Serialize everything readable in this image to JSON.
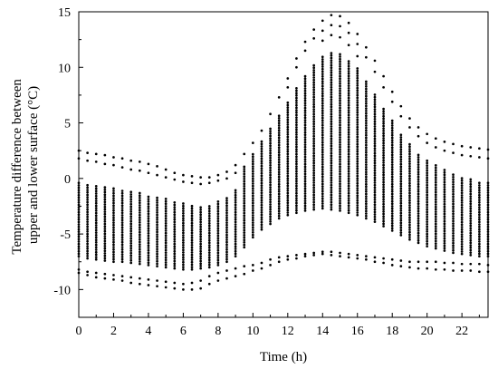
{
  "chart_data": {
    "type": "scatter",
    "title": "",
    "xlabel": "Time (h)",
    "ylabel_lines": [
      "Temperature difference between",
      "upper and lower surface (°C)"
    ],
    "xlim": [
      0,
      23.5
    ],
    "ylim": [
      -12.5,
      15
    ],
    "x_ticks": [
      0,
      2,
      4,
      6,
      8,
      10,
      12,
      14,
      16,
      18,
      20,
      22
    ],
    "x_tick_labels": [
      "0",
      "2",
      "4",
      "6",
      "8",
      "10",
      "12",
      "14",
      "16",
      "18",
      "20",
      "22"
    ],
    "y_ticks": [
      -10,
      -5,
      0,
      5,
      10,
      15
    ],
    "y_tick_labels": [
      "-10",
      "-5",
      "0",
      "5",
      "10",
      "15"
    ],
    "grid": false,
    "marker_color": "#000000",
    "x_step_h": 0.5,
    "columns": [
      {
        "x": 0.0,
        "sparse": [
          2.5,
          1.8,
          -8.2,
          -8.5
        ],
        "dense_range": [
          -7.0,
          -0.3
        ]
      },
      {
        "x": 0.5,
        "sparse": [
          2.3,
          1.6,
          -8.4,
          -8.7
        ],
        "dense_range": [
          -7.2,
          -0.5
        ]
      },
      {
        "x": 1.0,
        "sparse": [
          2.2,
          1.5,
          -8.5,
          -8.9
        ],
        "dense_range": [
          -7.3,
          -0.6
        ]
      },
      {
        "x": 1.5,
        "sparse": [
          2.1,
          1.3,
          -8.6,
          -9.0
        ],
        "dense_range": [
          -7.4,
          -0.8
        ]
      },
      {
        "x": 2.0,
        "sparse": [
          1.9,
          1.2,
          -8.7,
          -9.1
        ],
        "dense_range": [
          -7.5,
          -0.9
        ]
      },
      {
        "x": 2.5,
        "sparse": [
          1.8,
          1.0,
          -8.8,
          -9.2
        ],
        "dense_range": [
          -7.5,
          -1.0
        ]
      },
      {
        "x": 3.0,
        "sparse": [
          1.6,
          0.8,
          -8.9,
          -9.4
        ],
        "dense_range": [
          -7.6,
          -1.2
        ]
      },
      {
        "x": 3.5,
        "sparse": [
          1.5,
          0.7,
          -9.0,
          -9.5
        ],
        "dense_range": [
          -7.7,
          -1.3
        ]
      },
      {
        "x": 4.0,
        "sparse": [
          1.3,
          0.5,
          -9.1,
          -9.6
        ],
        "dense_range": [
          -7.8,
          -1.5
        ]
      },
      {
        "x": 4.5,
        "sparse": [
          1.1,
          0.3,
          -9.2,
          -9.7
        ],
        "dense_range": [
          -7.9,
          -1.6
        ]
      },
      {
        "x": 5.0,
        "sparse": [
          0.8,
          0.1,
          -9.3,
          -9.8
        ],
        "dense_range": [
          -8.0,
          -1.8
        ]
      },
      {
        "x": 5.5,
        "sparse": [
          0.5,
          -0.1,
          -9.4,
          -9.9
        ],
        "dense_range": [
          -8.1,
          -2.0
        ]
      },
      {
        "x": 6.0,
        "sparse": [
          0.3,
          -0.3,
          -9.5,
          -10.0
        ],
        "dense_range": [
          -8.2,
          -2.2
        ]
      },
      {
        "x": 6.5,
        "sparse": [
          0.2,
          -0.4,
          -9.4,
          -10.0
        ],
        "dense_range": [
          -8.2,
          -2.3
        ]
      },
      {
        "x": 7.0,
        "sparse": [
          0.1,
          -0.5,
          -9.2,
          -9.9
        ],
        "dense_range": [
          -8.1,
          -2.4
        ]
      },
      {
        "x": 7.5,
        "sparse": [
          0.1,
          -0.4,
          -8.8,
          -9.5
        ],
        "dense_range": [
          -8.0,
          -2.3
        ]
      },
      {
        "x": 8.0,
        "sparse": [
          0.3,
          -0.2,
          -8.5,
          -9.2
        ],
        "dense_range": [
          -7.8,
          -2.0
        ]
      },
      {
        "x": 8.5,
        "sparse": [
          0.6,
          0.0,
          -8.3,
          -9.0
        ],
        "dense_range": [
          -7.5,
          -1.7
        ]
      },
      {
        "x": 9.0,
        "sparse": [
          1.2,
          0.5,
          -8.1,
          -8.8
        ],
        "dense_range": [
          -7.0,
          -1.0
        ]
      },
      {
        "x": 9.5,
        "sparse": [
          2.2,
          -7.9,
          -8.6
        ],
        "dense_range": [
          -6.2,
          1.2
        ]
      },
      {
        "x": 10.0,
        "sparse": [
          3.2,
          -7.8,
          -8.3
        ],
        "dense_range": [
          -5.3,
          2.3
        ]
      },
      {
        "x": 10.5,
        "sparse": [
          4.3,
          -7.6,
          -8.1
        ],
        "dense_range": [
          -4.6,
          3.4
        ]
      },
      {
        "x": 11.0,
        "sparse": [
          5.8,
          -7.3,
          -7.8
        ],
        "dense_range": [
          -4.1,
          4.6
        ]
      },
      {
        "x": 11.5,
        "sparse": [
          7.3,
          -7.1,
          -7.5
        ],
        "dense_range": [
          -3.6,
          5.8
        ]
      },
      {
        "x": 12.0,
        "sparse": [
          9.0,
          8.2,
          -7.0,
          -7.3
        ],
        "dense_range": [
          -3.3,
          7.0
        ]
      },
      {
        "x": 12.5,
        "sparse": [
          10.8,
          10.0,
          -6.9,
          -7.2
        ],
        "dense_range": [
          -3.1,
          8.2
        ]
      },
      {
        "x": 13.0,
        "sparse": [
          12.3,
          11.5,
          -6.8,
          -7.0
        ],
        "dense_range": [
          -2.9,
          9.4
        ]
      },
      {
        "x": 13.5,
        "sparse": [
          13.4,
          12.6,
          -6.7,
          -6.9
        ],
        "dense_range": [
          -2.8,
          10.3
        ]
      },
      {
        "x": 14.0,
        "sparse": [
          14.2,
          13.3,
          12.4,
          -6.6,
          -6.8
        ],
        "dense_range": [
          -2.7,
          11.0
        ]
      },
      {
        "x": 14.5,
        "sparse": [
          14.7,
          13.8,
          12.9,
          -6.6,
          -6.9
        ],
        "dense_range": [
          -2.8,
          11.3
        ]
      },
      {
        "x": 15.0,
        "sparse": [
          14.6,
          13.7,
          12.7,
          -6.7,
          -7.0
        ],
        "dense_range": [
          -2.9,
          11.2
        ]
      },
      {
        "x": 15.5,
        "sparse": [
          14.0,
          13.1,
          12.0,
          -6.8,
          -7.1
        ],
        "dense_range": [
          -3.1,
          10.7
        ]
      },
      {
        "x": 16.0,
        "sparse": [
          13.0,
          12.1,
          11.0,
          -6.9,
          -7.2
        ],
        "dense_range": [
          -3.3,
          9.9
        ]
      },
      {
        "x": 16.5,
        "sparse": [
          11.8,
          10.9,
          -7.0,
          -7.3
        ],
        "dense_range": [
          -3.6,
          8.9
        ]
      },
      {
        "x": 17.0,
        "sparse": [
          10.6,
          9.6,
          -7.1,
          -7.5
        ],
        "dense_range": [
          -3.9,
          7.7
        ]
      },
      {
        "x": 17.5,
        "sparse": [
          9.2,
          8.2,
          -7.2,
          -7.6
        ],
        "dense_range": [
          -4.3,
          6.4
        ]
      },
      {
        "x": 18.0,
        "sparse": [
          7.8,
          6.9,
          -7.3,
          -7.8
        ],
        "dense_range": [
          -4.7,
          5.2
        ]
      },
      {
        "x": 18.5,
        "sparse": [
          6.5,
          5.6,
          -7.4,
          -7.9
        ],
        "dense_range": [
          -5.1,
          4.1
        ]
      },
      {
        "x": 19.0,
        "sparse": [
          5.4,
          4.6,
          -7.5,
          -8.0
        ],
        "dense_range": [
          -5.5,
          3.1
        ]
      },
      {
        "x": 19.5,
        "sparse": [
          4.6,
          3.8,
          -7.5,
          -8.1
        ],
        "dense_range": [
          -5.8,
          2.3
        ]
      },
      {
        "x": 20.0,
        "sparse": [
          4.0,
          3.2,
          -7.5,
          -8.1
        ],
        "dense_range": [
          -6.1,
          1.7
        ]
      },
      {
        "x": 20.5,
        "sparse": [
          3.6,
          2.8,
          -7.5,
          -8.2
        ],
        "dense_range": [
          -6.3,
          1.2
        ]
      },
      {
        "x": 21.0,
        "sparse": [
          3.3,
          2.5,
          -7.6,
          -8.2
        ],
        "dense_range": [
          -6.5,
          0.8
        ]
      },
      {
        "x": 21.5,
        "sparse": [
          3.1,
          2.3,
          -7.6,
          -8.3
        ],
        "dense_range": [
          -6.7,
          0.5
        ]
      },
      {
        "x": 22.0,
        "sparse": [
          2.9,
          2.1,
          -7.7,
          -8.3
        ],
        "dense_range": [
          -6.8,
          0.2
        ]
      },
      {
        "x": 22.5,
        "sparse": [
          2.8,
          2.0,
          -7.7,
          -8.3
        ],
        "dense_range": [
          -6.9,
          0.0
        ]
      },
      {
        "x": 23.0,
        "sparse": [
          2.7,
          1.9,
          -7.7,
          -8.4
        ],
        "dense_range": [
          -7.0,
          -0.2
        ]
      },
      {
        "x": 23.5,
        "sparse": [
          2.6,
          1.8,
          -7.8,
          -8.4
        ],
        "dense_range": [
          -7.0,
          -0.3
        ]
      }
    ]
  }
}
